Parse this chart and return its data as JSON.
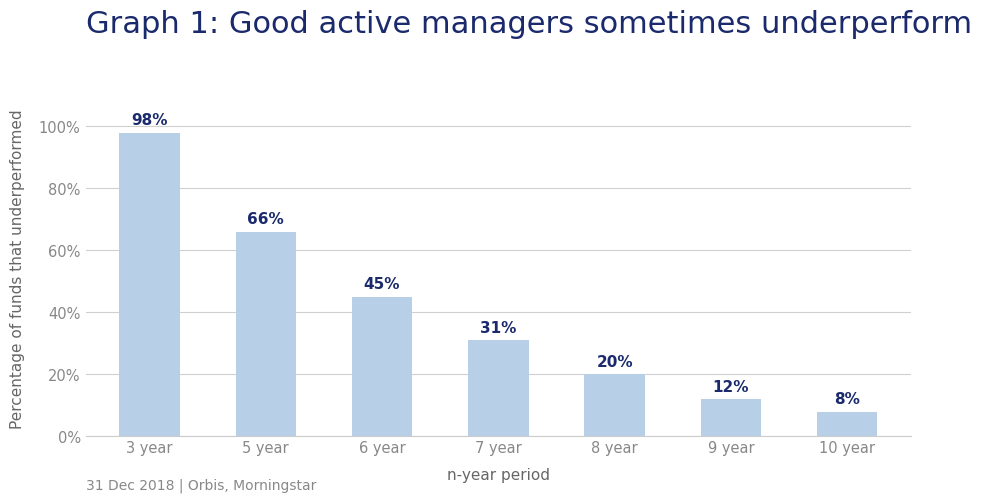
{
  "title": "Graph 1: Good active managers sometimes underperform",
  "categories": [
    "3 year",
    "5 year",
    "6 year",
    "7 year",
    "8 year",
    "9 year",
    "10 year"
  ],
  "values": [
    98,
    66,
    45,
    31,
    20,
    12,
    8
  ],
  "bar_color": "#b8cfe8",
  "label_color": "#1a2a6c",
  "title_color": "#1a2a6c",
  "xlabel": "n-year period",
  "ylabel": "Percentage of funds that underperformed",
  "ylim": [
    0,
    108
  ],
  "yticks": [
    0,
    20,
    40,
    60,
    80,
    100
  ],
  "ytick_labels": [
    "0%",
    "20%",
    "40%",
    "60%",
    "80%",
    "100%"
  ],
  "footnote": "31 Dec 2018 | Orbis, Morningstar",
  "background_color": "#ffffff",
  "grid_color": "#d0d0d0",
  "title_fontsize": 22,
  "label_fontsize": 11,
  "tick_fontsize": 10.5,
  "footnote_fontsize": 10,
  "bar_label_fontsize": 11
}
